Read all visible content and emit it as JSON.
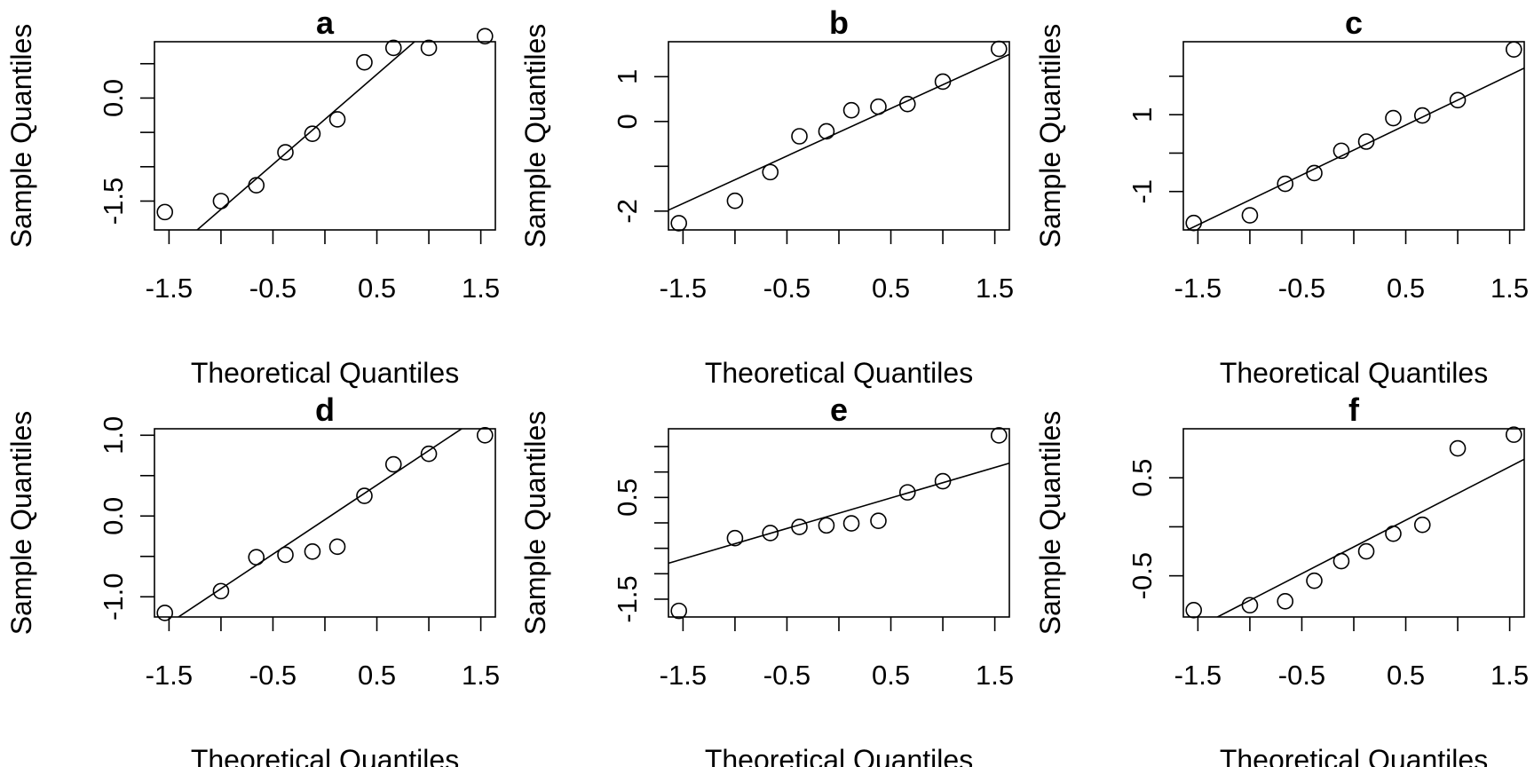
{
  "chart_data": [
    {
      "type": "scatter",
      "title": "a",
      "xlabel": "Theoretical Quantiles",
      "ylabel": "Sample Quantiles",
      "xlim": [
        -1.64,
        1.64
      ],
      "ylim": [
        -1.92,
        0.82
      ],
      "x_ticks": [
        -1.5,
        -1.0,
        -0.5,
        0.0,
        0.5,
        1.0,
        1.5
      ],
      "x_tick_labels": [
        "-1.5",
        "",
        "-0.5",
        "",
        "0.5",
        "",
        "1.5"
      ],
      "y_ticks": [
        -1.5,
        -1.0,
        -0.5,
        0.0,
        0.5
      ],
      "y_tick_labels": [
        "-1.5",
        "",
        "",
        "0.0",
        ""
      ],
      "x": [
        -1.54,
        -1.0,
        -0.66,
        -0.38,
        -0.12,
        0.12,
        0.38,
        0.66,
        1.0,
        1.54
      ],
      "y": [
        -1.66,
        -1.5,
        -1.27,
        -0.79,
        -0.52,
        -0.31,
        0.52,
        0.73,
        0.73,
        0.9
      ],
      "line": {
        "x1": -1.0,
        "y1": -1.62,
        "x2": 1.0,
        "y2": 1.0
      }
    },
    {
      "type": "scatter",
      "title": "b",
      "xlabel": "Theoretical Quantiles",
      "ylabel": "Sample Quantiles",
      "xlim": [
        -1.64,
        1.64
      ],
      "ylim": [
        -2.42,
        1.78
      ],
      "x_ticks": [
        -1.5,
        -1.0,
        -0.5,
        0.0,
        0.5,
        1.0,
        1.5
      ],
      "x_tick_labels": [
        "-1.5",
        "",
        "-0.5",
        "",
        "0.5",
        "",
        "1.5"
      ],
      "y_ticks": [
        -2,
        -1,
        0,
        1
      ],
      "y_tick_labels": [
        "-2",
        "",
        "0",
        "1"
      ],
      "x": [
        -1.54,
        -1.0,
        -0.66,
        -0.38,
        -0.12,
        0.12,
        0.38,
        0.66,
        1.0,
        1.54
      ],
      "y": [
        -2.27,
        -1.77,
        -1.13,
        -0.33,
        -0.22,
        0.25,
        0.33,
        0.39,
        0.89,
        1.62
      ],
      "line": {
        "x1": -1.0,
        "y1": -1.3,
        "x2": 1.0,
        "y2": 0.82
      }
    },
    {
      "type": "scatter",
      "title": "c",
      "xlabel": "Theoretical Quantiles",
      "ylabel": "Sample Quantiles",
      "xlim": [
        -1.64,
        1.64
      ],
      "ylim": [
        -2.0,
        2.9
      ],
      "x_ticks": [
        -1.5,
        -1.0,
        -0.5,
        0.0,
        0.5,
        1.0,
        1.5
      ],
      "x_tick_labels": [
        "-1.5",
        "",
        "-0.5",
        "",
        "0.5",
        "",
        "1.5"
      ],
      "y_ticks": [
        -1,
        0,
        1,
        2
      ],
      "y_tick_labels": [
        "-1",
        "",
        "1",
        ""
      ],
      "x": [
        -1.54,
        -1.0,
        -0.66,
        -0.38,
        -0.12,
        0.12,
        0.38,
        0.66,
        1.0,
        1.54
      ],
      "y": [
        -1.82,
        -1.62,
        -0.8,
        -0.52,
        0.06,
        0.3,
        0.91,
        0.98,
        1.38,
        2.7
      ],
      "line": {
        "x1": -1.0,
        "y1": -1.22,
        "x2": 1.0,
        "y2": 1.38
      }
    },
    {
      "type": "scatter",
      "title": "d",
      "xlabel": "Theoretical Quantiles",
      "ylabel": "Sample Quantiles",
      "xlim": [
        -1.64,
        1.64
      ],
      "ylim": [
        -1.25,
        1.08
      ],
      "x_ticks": [
        -1.5,
        -1.0,
        -0.5,
        0.0,
        0.5,
        1.0,
        1.5
      ],
      "x_tick_labels": [
        "-1.5",
        "",
        "-0.5",
        "",
        "0.5",
        "",
        "1.5"
      ],
      "y_ticks": [
        -1.0,
        -0.5,
        0.0,
        0.5,
        1.0
      ],
      "y_tick_labels": [
        "-1.0",
        "",
        "0.0",
        "",
        "1.0"
      ],
      "x": [
        -1.54,
        -1.0,
        -0.66,
        -0.38,
        -0.12,
        0.12,
        0.38,
        0.66,
        1.0,
        1.54
      ],
      "y": [
        -1.2,
        -0.93,
        -0.51,
        -0.48,
        -0.44,
        -0.38,
        0.25,
        0.64,
        0.77,
        1.0
      ],
      "line": {
        "x1": -1.0,
        "y1": -0.9,
        "x2": 1.0,
        "y2": 0.81
      }
    },
    {
      "type": "scatter",
      "title": "e",
      "xlabel": "Theoretical Quantiles",
      "ylabel": "Sample Quantiles",
      "xlim": [
        -1.64,
        1.64
      ],
      "ylim": [
        -1.85,
        1.85
      ],
      "x_ticks": [
        -1.5,
        -1.0,
        -0.5,
        0.0,
        0.5,
        1.0,
        1.5
      ],
      "x_tick_labels": [
        "-1.5",
        "",
        "-0.5",
        "",
        "0.5",
        "",
        "1.5"
      ],
      "y_ticks": [
        -1.5,
        -1.0,
        -0.5,
        0.0,
        0.5,
        1.0,
        1.5
      ],
      "y_tick_labels": [
        "-1.5",
        "",
        "",
        "",
        "0.5",
        "",
        ""
      ],
      "x": [
        -1.54,
        -1.0,
        -0.66,
        -0.38,
        -0.12,
        0.12,
        0.38,
        0.66,
        1.0,
        1.54
      ],
      "y": [
        -1.73,
        -0.3,
        -0.2,
        -0.08,
        -0.05,
        -0.01,
        0.04,
        0.6,
        0.82,
        1.72
      ],
      "line": {
        "x1": -1.0,
        "y1": -0.41,
        "x2": 1.0,
        "y2": 0.79
      }
    },
    {
      "type": "scatter",
      "title": "f",
      "xlabel": "Theoretical Quantiles",
      "ylabel": "Sample Quantiles",
      "xlim": [
        -1.64,
        1.64
      ],
      "ylim": [
        -0.92,
        1.0
      ],
      "x_ticks": [
        -1.5,
        -1.0,
        -0.5,
        0.0,
        0.5,
        1.0,
        1.5
      ],
      "x_tick_labels": [
        "-1.5",
        "",
        "-0.5",
        "",
        "0.5",
        "",
        "1.5"
      ],
      "y_ticks": [
        -0.5,
        0.0,
        0.5
      ],
      "y_tick_labels": [
        "-0.5",
        "",
        "0.5"
      ],
      "x": [
        -1.54,
        -1.0,
        -0.66,
        -0.38,
        -0.12,
        0.12,
        0.38,
        0.66,
        1.0,
        1.54
      ],
      "y": [
        -0.85,
        -0.8,
        -0.76,
        -0.55,
        -0.35,
        -0.25,
        -0.07,
        0.02,
        0.8,
        0.94
      ],
      "line": {
        "x1": -1.0,
        "y1": -0.75,
        "x2": 1.0,
        "y2": 0.34
      }
    }
  ]
}
